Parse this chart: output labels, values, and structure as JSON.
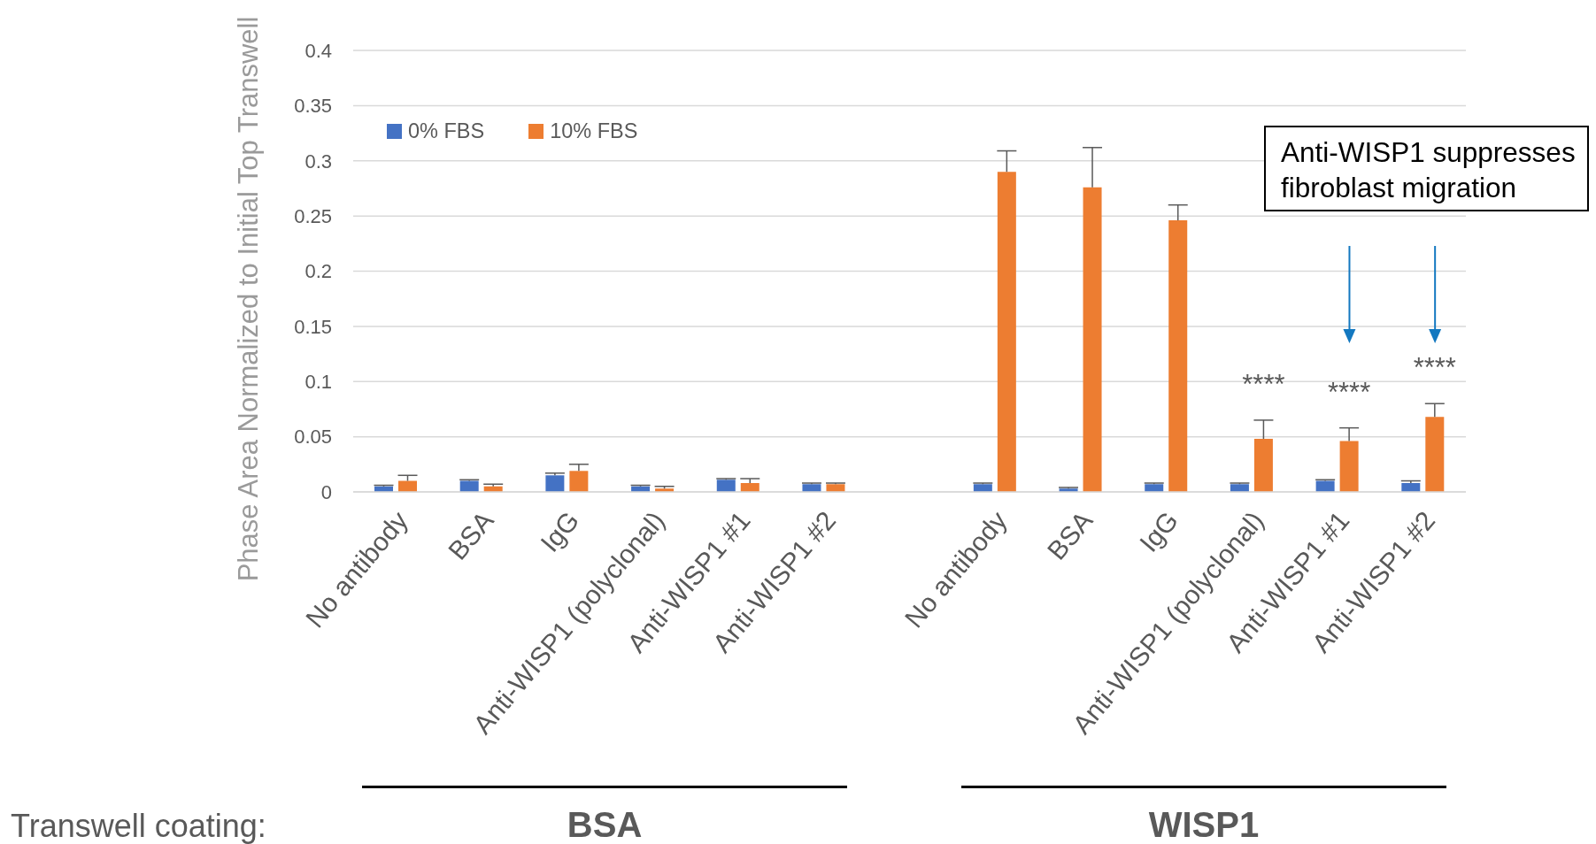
{
  "chart_data": {
    "type": "bar",
    "ylabel": "Phase Area Normalized to Initial Top Transwell",
    "categories": [
      "No antibody",
      "BSA",
      "IgG",
      "Anti-WISP1 (polyclonal)",
      "Anti-WISP1 #1",
      "Anti-WISP1 #2",
      null,
      "No antibody",
      "BSA",
      "IgG",
      "Anti-WISP1 (polyclonal)",
      "Anti-WISP1 #1",
      "Anti-WISP1 #2"
    ],
    "series": [
      {
        "name": "0% FBS",
        "color": "#4472c4",
        "values": [
          0.005,
          0.01,
          0.015,
          0.005,
          0.011,
          0.007,
          null,
          0.007,
          0.003,
          0.007,
          0.007,
          0.01,
          0.008
        ],
        "errors": [
          [
            0.005,
            0.006
          ],
          [
            0.01,
            0.011
          ],
          [
            0.015,
            0.017
          ],
          [
            0.005,
            0.006
          ],
          [
            0.011,
            0.012
          ],
          [
            0.007,
            0.008
          ],
          null,
          [
            0.007,
            0.008
          ],
          [
            0.003,
            0.004
          ],
          [
            0.007,
            0.008
          ],
          [
            0.007,
            0.008
          ],
          [
            0.01,
            0.011
          ],
          [
            0.008,
            0.01
          ]
        ]
      },
      {
        "name": "10% FBS",
        "color": "#ed7d31",
        "values": [
          0.01,
          0.005,
          0.019,
          0.003,
          0.008,
          0.007,
          null,
          0.29,
          0.276,
          0.246,
          0.048,
          0.046,
          0.068
        ],
        "errors": [
          [
            0.01,
            0.015
          ],
          [
            0.005,
            0.007
          ],
          [
            0.019,
            0.025
          ],
          [
            0.003,
            0.005
          ],
          [
            0.008,
            0.012
          ],
          [
            0.007,
            0.008
          ],
          null,
          [
            0.29,
            0.309
          ],
          [
            0.276,
            0.312
          ],
          [
            0.246,
            0.26
          ],
          [
            0.048,
            0.065
          ],
          [
            0.046,
            0.058
          ],
          [
            0.068,
            0.08
          ]
        ],
        "value_labels": [
          null,
          null,
          null,
          null,
          null,
          null,
          null,
          null,
          null,
          null,
          "****",
          "****",
          "****"
        ]
      }
    ],
    "ylim": [
      0,
      0.4
    ],
    "yticks": [
      0,
      0.05,
      0.1,
      0.15,
      0.2,
      0.25,
      0.3,
      0.35,
      0.4
    ],
    "grid": "y",
    "legend": "top left",
    "annotations": [
      "Anti-WISP1 suppresses fibroblast migration",
      "Transwell coating:",
      "BSA",
      "WISP1"
    ]
  }
}
